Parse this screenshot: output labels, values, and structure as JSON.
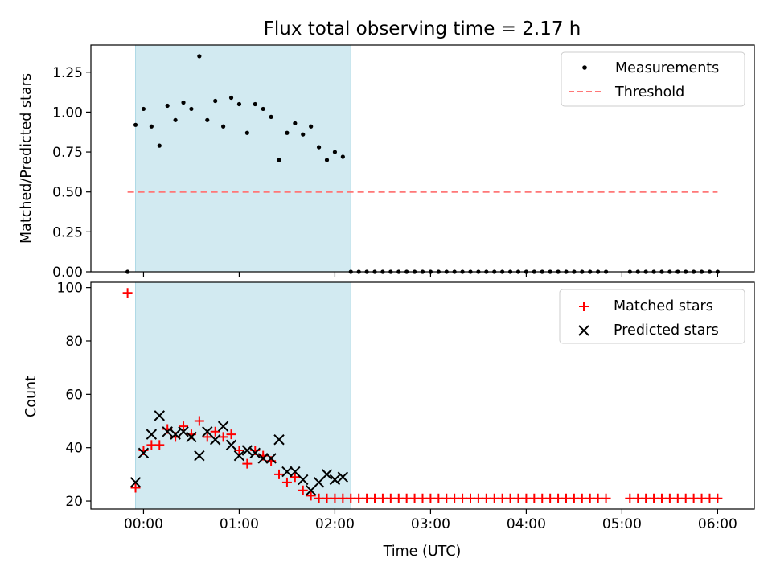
{
  "chart_data": [
    {
      "type": "scatter",
      "title": "Flux total observing time = 2.17 h",
      "xlabel": "",
      "ylabel": "Matched/Predicted stars",
      "xlim": [
        "-00:33",
        "06:23"
      ],
      "ylim": [
        0,
        1.42
      ],
      "x_ticks": [
        "00:00",
        "01:00",
        "02:00",
        "03:00",
        "04:00",
        "05:00",
        "06:00"
      ],
      "y_ticks": [
        "0.00",
        "0.25",
        "0.50",
        "0.75",
        "1.00",
        "1.25"
      ],
      "shaded_interval": [
        "-00:05",
        "02:10"
      ],
      "shade_color": "#add8e6",
      "legend": {
        "placement": "upper right",
        "entries": [
          "Measurements",
          "Threshold"
        ]
      },
      "threshold": {
        "name": "Threshold",
        "value": 0.5,
        "x_range": [
          "-00:10",
          "06:00"
        ],
        "color": "#ff7777",
        "style": "dashed"
      },
      "series": [
        {
          "name": "Measurements",
          "color": "#000000",
          "points": [
            [
              "-00:10",
              0.0
            ],
            [
              "-00:05",
              0.92
            ],
            [
              "00:00",
              1.02
            ],
            [
              "00:05",
              0.91
            ],
            [
              "00:10",
              0.79
            ],
            [
              "00:15",
              1.04
            ],
            [
              "00:20",
              0.95
            ],
            [
              "00:25",
              1.06
            ],
            [
              "00:30",
              1.02
            ],
            [
              "00:35",
              1.35
            ],
            [
              "00:40",
              0.95
            ],
            [
              "00:45",
              1.07
            ],
            [
              "00:50",
              0.91
            ],
            [
              "00:55",
              1.09
            ],
            [
              "01:00",
              1.05
            ],
            [
              "01:05",
              0.87
            ],
            [
              "01:10",
              1.05
            ],
            [
              "01:15",
              1.02
            ],
            [
              "01:20",
              0.97
            ],
            [
              "01:25",
              0.7
            ],
            [
              "01:30",
              0.87
            ],
            [
              "01:35",
              0.93
            ],
            [
              "01:40",
              0.86
            ],
            [
              "01:45",
              0.91
            ],
            [
              "01:50",
              0.78
            ],
            [
              "01:55",
              0.7
            ],
            [
              "02:00",
              0.75
            ],
            [
              "02:05",
              0.72
            ],
            [
              "02:10",
              0.0
            ],
            [
              "02:15",
              0.0
            ],
            [
              "02:20",
              0.0
            ],
            [
              "02:25",
              0.0
            ],
            [
              "02:30",
              0.0
            ],
            [
              "02:35",
              0.0
            ],
            [
              "02:40",
              0.0
            ],
            [
              "02:45",
              0.0
            ],
            [
              "02:50",
              0.0
            ],
            [
              "02:55",
              0.0
            ],
            [
              "03:00",
              0.0
            ],
            [
              "03:05",
              0.0
            ],
            [
              "03:10",
              0.0
            ],
            [
              "03:15",
              0.0
            ],
            [
              "03:20",
              0.0
            ],
            [
              "03:25",
              0.0
            ],
            [
              "03:30",
              0.0
            ],
            [
              "03:35",
              0.0
            ],
            [
              "03:40",
              0.0
            ],
            [
              "03:45",
              0.0
            ],
            [
              "03:50",
              0.0
            ],
            [
              "03:55",
              0.0
            ],
            [
              "04:00",
              0.0
            ],
            [
              "04:05",
              0.0
            ],
            [
              "04:10",
              0.0
            ],
            [
              "04:15",
              0.0
            ],
            [
              "04:20",
              0.0
            ],
            [
              "04:25",
              0.0
            ],
            [
              "04:30",
              0.0
            ],
            [
              "04:35",
              0.0
            ],
            [
              "04:40",
              0.0
            ],
            [
              "04:45",
              0.0
            ],
            [
              "04:50",
              0.0
            ],
            [
              "05:05",
              0.0
            ],
            [
              "05:10",
              0.0
            ],
            [
              "05:15",
              0.0
            ],
            [
              "05:20",
              0.0
            ],
            [
              "05:25",
              0.0
            ],
            [
              "05:30",
              0.0
            ],
            [
              "05:35",
              0.0
            ],
            [
              "05:40",
              0.0
            ],
            [
              "05:45",
              0.0
            ],
            [
              "05:50",
              0.0
            ],
            [
              "05:55",
              0.0
            ],
            [
              "06:00",
              0.0
            ]
          ]
        }
      ]
    },
    {
      "type": "scatter",
      "xlabel": "Time (UTC)",
      "ylabel": "Count",
      "xlim": [
        "-00:33",
        "06:23"
      ],
      "ylim": [
        17,
        102
      ],
      "x_ticks": [
        "00:00",
        "01:00",
        "02:00",
        "03:00",
        "04:00",
        "05:00",
        "06:00"
      ],
      "y_ticks": [
        "20",
        "40",
        "60",
        "80",
        "100"
      ],
      "shaded_interval": [
        "-00:05",
        "02:10"
      ],
      "shade_color": "#add8e6",
      "legend": {
        "placement": "upper right",
        "entries": [
          "Matched stars",
          "Predicted stars"
        ]
      },
      "series": [
        {
          "name": "Matched stars",
          "marker": "plus",
          "color": "#ff0000",
          "points": [
            [
              "-00:10",
              98
            ],
            [
              "-00:05",
              25
            ],
            [
              "00:00",
              39
            ],
            [
              "00:05",
              41
            ],
            [
              "00:10",
              41
            ],
            [
              "00:15",
              47
            ],
            [
              "00:20",
              44
            ],
            [
              "00:25",
              48
            ],
            [
              "00:30",
              45
            ],
            [
              "00:35",
              50
            ],
            [
              "00:40",
              44
            ],
            [
              "00:45",
              46
            ],
            [
              "00:50",
              44
            ],
            [
              "00:55",
              45
            ],
            [
              "01:00",
              39
            ],
            [
              "01:05",
              34
            ],
            [
              "01:10",
              39
            ],
            [
              "01:15",
              37
            ],
            [
              "01:20",
              35
            ],
            [
              "01:25",
              30
            ],
            [
              "01:30",
              27
            ],
            [
              "01:35",
              29
            ],
            [
              "01:40",
              24
            ],
            [
              "01:45",
              22
            ],
            [
              "01:50",
              21
            ],
            [
              "01:55",
              21
            ],
            [
              "02:00",
              21
            ],
            [
              "02:05",
              21
            ],
            [
              "02:10",
              21
            ],
            [
              "02:15",
              21
            ],
            [
              "02:20",
              21
            ],
            [
              "02:25",
              21
            ],
            [
              "02:30",
              21
            ],
            [
              "02:35",
              21
            ],
            [
              "02:40",
              21
            ],
            [
              "02:45",
              21
            ],
            [
              "02:50",
              21
            ],
            [
              "02:55",
              21
            ],
            [
              "03:00",
              21
            ],
            [
              "03:05",
              21
            ],
            [
              "03:10",
              21
            ],
            [
              "03:15",
              21
            ],
            [
              "03:20",
              21
            ],
            [
              "03:25",
              21
            ],
            [
              "03:30",
              21
            ],
            [
              "03:35",
              21
            ],
            [
              "03:40",
              21
            ],
            [
              "03:45",
              21
            ],
            [
              "03:50",
              21
            ],
            [
              "03:55",
              21
            ],
            [
              "04:00",
              21
            ],
            [
              "04:05",
              21
            ],
            [
              "04:10",
              21
            ],
            [
              "04:15",
              21
            ],
            [
              "04:20",
              21
            ],
            [
              "04:25",
              21
            ],
            [
              "04:30",
              21
            ],
            [
              "04:35",
              21
            ],
            [
              "04:40",
              21
            ],
            [
              "04:45",
              21
            ],
            [
              "04:50",
              21
            ],
            [
              "05:05",
              21
            ],
            [
              "05:10",
              21
            ],
            [
              "05:15",
              21
            ],
            [
              "05:20",
              21
            ],
            [
              "05:25",
              21
            ],
            [
              "05:30",
              21
            ],
            [
              "05:35",
              21
            ],
            [
              "05:40",
              21
            ],
            [
              "05:45",
              21
            ],
            [
              "05:50",
              21
            ],
            [
              "05:55",
              21
            ],
            [
              "06:00",
              21
            ]
          ]
        },
        {
          "name": "Predicted stars",
          "marker": "x",
          "color": "#000000",
          "points": [
            [
              "-00:05",
              27
            ],
            [
              "00:00",
              38
            ],
            [
              "00:05",
              45
            ],
            [
              "00:10",
              52
            ],
            [
              "00:15",
              46
            ],
            [
              "00:20",
              45
            ],
            [
              "00:25",
              46
            ],
            [
              "00:30",
              44
            ],
            [
              "00:35",
              37
            ],
            [
              "00:40",
              46
            ],
            [
              "00:45",
              43
            ],
            [
              "00:50",
              48
            ],
            [
              "00:55",
              41
            ],
            [
              "01:00",
              37
            ],
            [
              "01:05",
              39
            ],
            [
              "01:10",
              38
            ],
            [
              "01:15",
              36
            ],
            [
              "01:20",
              36
            ],
            [
              "01:25",
              43
            ],
            [
              "01:30",
              31
            ],
            [
              "01:35",
              31
            ],
            [
              "01:40",
              28
            ],
            [
              "01:45",
              24
            ],
            [
              "01:50",
              27
            ],
            [
              "01:55",
              30
            ],
            [
              "02:00",
              28
            ],
            [
              "02:05",
              29
            ]
          ]
        }
      ]
    }
  ]
}
